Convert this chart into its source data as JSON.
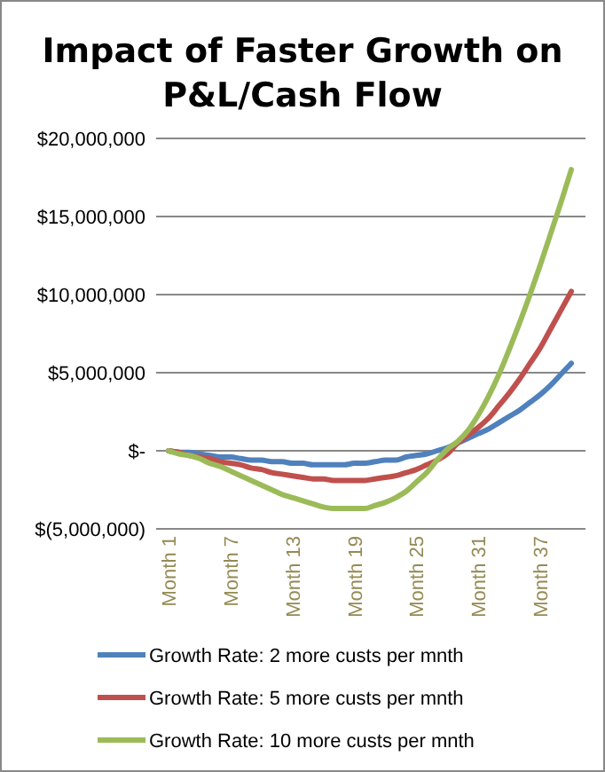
{
  "chart_data": {
    "type": "line",
    "title": "Impact of Faster Growth on P&L/Cash Flow",
    "categories": [
      "Month 1",
      null,
      null,
      null,
      null,
      null,
      "Month 7",
      null,
      null,
      null,
      null,
      null,
      "Month 13",
      null,
      null,
      null,
      null,
      null,
      "Month 19",
      null,
      null,
      null,
      null,
      null,
      "Month 25",
      null,
      null,
      null,
      null,
      null,
      "Month 31",
      null,
      null,
      null,
      null,
      null,
      "Month 37",
      null,
      null,
      null
    ],
    "series": [
      {
        "name": "Growth Rate: 2 more custs per mnth",
        "color": "#4f81bd",
        "values": [
          0,
          -100000,
          -100000,
          -200000,
          -300000,
          -400000,
          -400000,
          -500000,
          -600000,
          -600000,
          -700000,
          -700000,
          -800000,
          -800000,
          -900000,
          -900000,
          -900000,
          -900000,
          -800000,
          -800000,
          -700000,
          -600000,
          -600000,
          -400000,
          -300000,
          -200000,
          0,
          200000,
          500000,
          800000,
          1100000,
          1400000,
          1800000,
          2200000,
          2600000,
          3100000,
          3600000,
          4200000,
          4900000,
          5600000
        ]
      },
      {
        "name": "Growth Rate: 5 more custs per mnth",
        "color": "#c0504d",
        "values": [
          0,
          -100000,
          -300000,
          -400000,
          -500000,
          -700000,
          -800000,
          -900000,
          -1100000,
          -1200000,
          -1400000,
          -1500000,
          -1600000,
          -1700000,
          -1800000,
          -1800000,
          -1900000,
          -1900000,
          -1900000,
          -1900000,
          -1800000,
          -1700000,
          -1600000,
          -1400000,
          -1200000,
          -900000,
          -600000,
          -200000,
          500000,
          1000000,
          1500000,
          2100000,
          2900000,
          3700000,
          4600000,
          5600000,
          6600000,
          7800000,
          9000000,
          10200000
        ]
      },
      {
        "name": "Growth Rate: 10 more custs per mnth",
        "color": "#9bbb59",
        "values": [
          0,
          -200000,
          -300000,
          -500000,
          -800000,
          -1000000,
          -1300000,
          -1600000,
          -1900000,
          -2200000,
          -2500000,
          -2800000,
          -3000000,
          -3200000,
          -3400000,
          -3600000,
          -3700000,
          -3700000,
          -3700000,
          -3700000,
          -3500000,
          -3300000,
          -3000000,
          -2600000,
          -2000000,
          -1400000,
          -600000,
          100000,
          600000,
          1300000,
          2300000,
          3500000,
          4900000,
          6500000,
          8200000,
          10000000,
          11900000,
          13900000,
          15900000,
          18000000
        ]
      }
    ],
    "ylim": [
      -5000000,
      20000000
    ],
    "yticks": [
      {
        "value": -5000000,
        "label": "$(5,000,000)"
      },
      {
        "value": 0,
        "label": "$-"
      },
      {
        "value": 5000000,
        "label": "$5,000,000"
      },
      {
        "value": 10000000,
        "label": "$10,000,000"
      },
      {
        "value": 15000000,
        "label": "$15,000,000"
      },
      {
        "value": 20000000,
        "label": "$20,000,000"
      }
    ],
    "grid": "y",
    "legend": "bottom",
    "marker": "none",
    "line_style": "solid"
  }
}
